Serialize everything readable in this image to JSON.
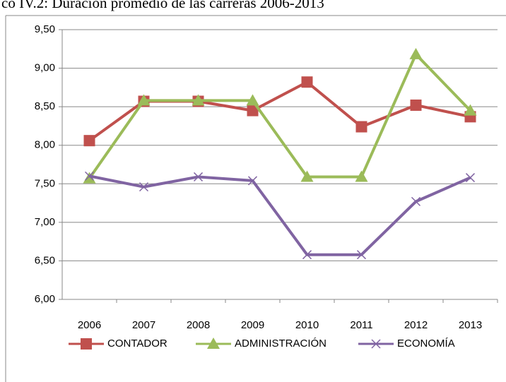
{
  "chart_data": {
    "type": "line",
    "title": "co IV.2: Duración promedio de las carreras 2006-2013",
    "categories": [
      "2006",
      "2007",
      "2008",
      "2009",
      "2010",
      "2011",
      "2012",
      "2013"
    ],
    "series": [
      {
        "name": "CONTADOR",
        "color": "#c0504d",
        "marker": "square",
        "values": [
          8.06,
          8.57,
          8.57,
          8.45,
          8.82,
          8.24,
          8.52,
          8.37
        ]
      },
      {
        "name": "ADMINISTRACIÓN",
        "color": "#9bbb59",
        "marker": "triangle",
        "values": [
          7.57,
          8.58,
          8.58,
          8.58,
          7.59,
          7.59,
          9.18,
          8.45
        ]
      },
      {
        "name": "ECONOMÍA",
        "color": "#8064a2",
        "marker": "x",
        "values": [
          7.6,
          7.46,
          7.59,
          7.54,
          6.58,
          6.58,
          7.27,
          7.58
        ]
      }
    ],
    "ylim": [
      6,
      9.5
    ],
    "yticks": [
      {
        "value": 6,
        "label": "6,00"
      },
      {
        "value": 6.5,
        "label": "6,50"
      },
      {
        "value": 7,
        "label": "7,00"
      },
      {
        "value": 7.5,
        "label": "7,50"
      },
      {
        "value": 8,
        "label": "8,00"
      },
      {
        "value": 8.5,
        "label": "8,50"
      },
      {
        "value": 9,
        "label": "9,00"
      },
      {
        "value": 9.5,
        "label": "9,50"
      }
    ],
    "grid": true,
    "legend": "bottom"
  }
}
